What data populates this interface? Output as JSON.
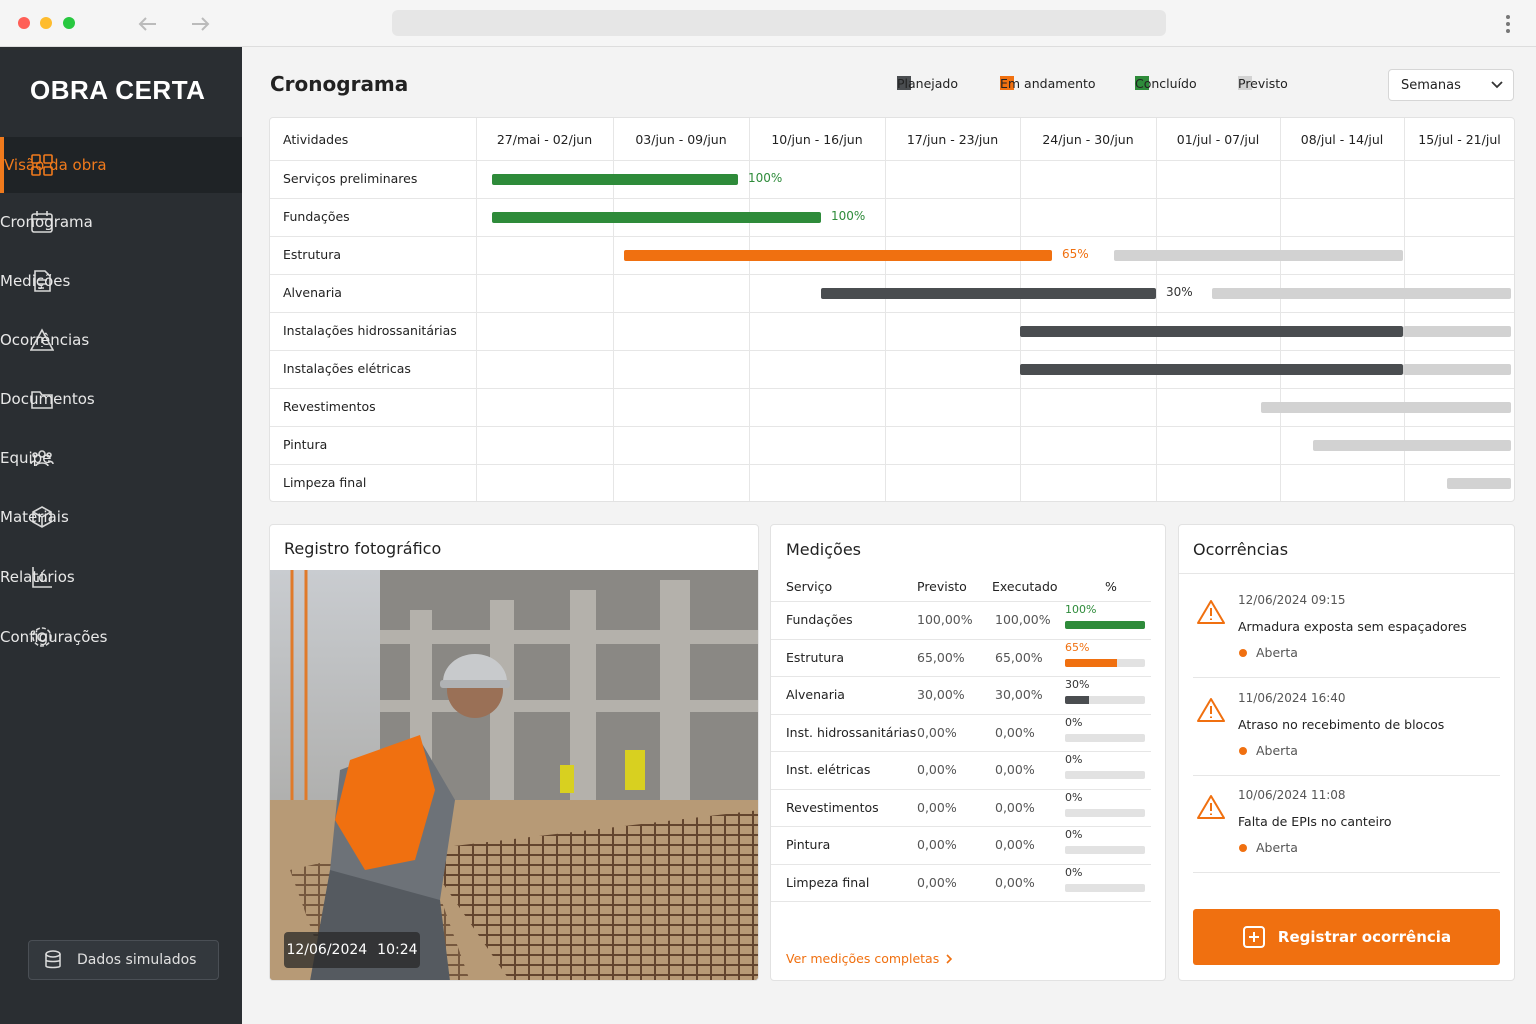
{
  "sidebar": {
    "brand": "OBRA CERTA",
    "nav": [
      "Visão da obra",
      "Cronograma",
      "Medições",
      "Ocorrências",
      "Documentos",
      "Equipe",
      "Materiais",
      "Relatórios",
      "Configurações"
    ],
    "footer": "Dados simulados"
  },
  "header": {
    "title": "Cronograma",
    "legend": [
      "Planejado",
      "Em andamento",
      "Concluído",
      "Previsto"
    ],
    "period": "Semanas"
  },
  "gantt": {
    "columns": [
      "Atividades",
      "27/mai - 02/jun",
      "03/jun - 09/jun",
      "10/jun - 16/jun",
      "17/jun - 23/jun",
      "24/jun - 30/jun",
      "01/jul - 07/jul",
      "08/jul - 14/jul",
      "15/jul - 21/jul"
    ],
    "rows": [
      {
        "activity": "Serviços preliminares",
        "progress": "100%"
      },
      {
        "activity": "Fundações",
        "progress": "100%"
      },
      {
        "activity": "Estrutura",
        "progress": "65%"
      },
      {
        "activity": "Alvenaria",
        "progress": "30%"
      },
      {
        "activity": "Instalações hidrossanitárias"
      },
      {
        "activity": "Instalações elétricas"
      },
      {
        "activity": "Revestimentos"
      },
      {
        "activity": "Pintura"
      },
      {
        "activity": "Limpeza final"
      }
    ]
  },
  "photo": {
    "title": "Registro fotográfico",
    "date": "12/06/2024",
    "time": "10:24"
  },
  "measurements": {
    "title": "Medições",
    "columns": [
      "Serviço",
      "Previsto",
      "Executado",
      "%"
    ],
    "rows": [
      {
        "service": "Fundações",
        "planned": "100,00%",
        "executed": "100,00%",
        "pct": "100%"
      },
      {
        "service": "Estrutura",
        "planned": "65,00%",
        "executed": "65,00%",
        "pct": "65%"
      },
      {
        "service": "Alvenaria",
        "planned": "30,00%",
        "executed": "30,00%",
        "pct": "30%"
      },
      {
        "service": "Inst. hidrossanitárias",
        "planned": "0,00%",
        "executed": "0,00%",
        "pct": "0%"
      },
      {
        "service": "Inst. elétricas",
        "planned": "0,00%",
        "executed": "0,00%",
        "pct": "0%"
      },
      {
        "service": "Revestimentos",
        "planned": "0,00%",
        "executed": "0,00%",
        "pct": "0%"
      },
      {
        "service": "Pintura",
        "planned": "0,00%",
        "executed": "0,00%",
        "pct": "0%"
      },
      {
        "service": "Limpeza final",
        "planned": "0,00%",
        "executed": "0,00%",
        "pct": "0%"
      }
    ],
    "link": "Ver medições completas"
  },
  "incidents": {
    "title": "Ocorrências",
    "items": [
      {
        "datetime": "12/06/2024 09:15",
        "description": "Armadura exposta sem espaçadores",
        "status": "Aberta"
      },
      {
        "datetime": "11/06/2024 16:40",
        "description": "Atraso no recebimento de blocos",
        "status": "Aberta"
      },
      {
        "datetime": "10/06/2024 11:08",
        "description": "Falta de EPIs no canteiro",
        "status": "Aberta"
      }
    ],
    "button": "Registrar ocorrência"
  }
}
